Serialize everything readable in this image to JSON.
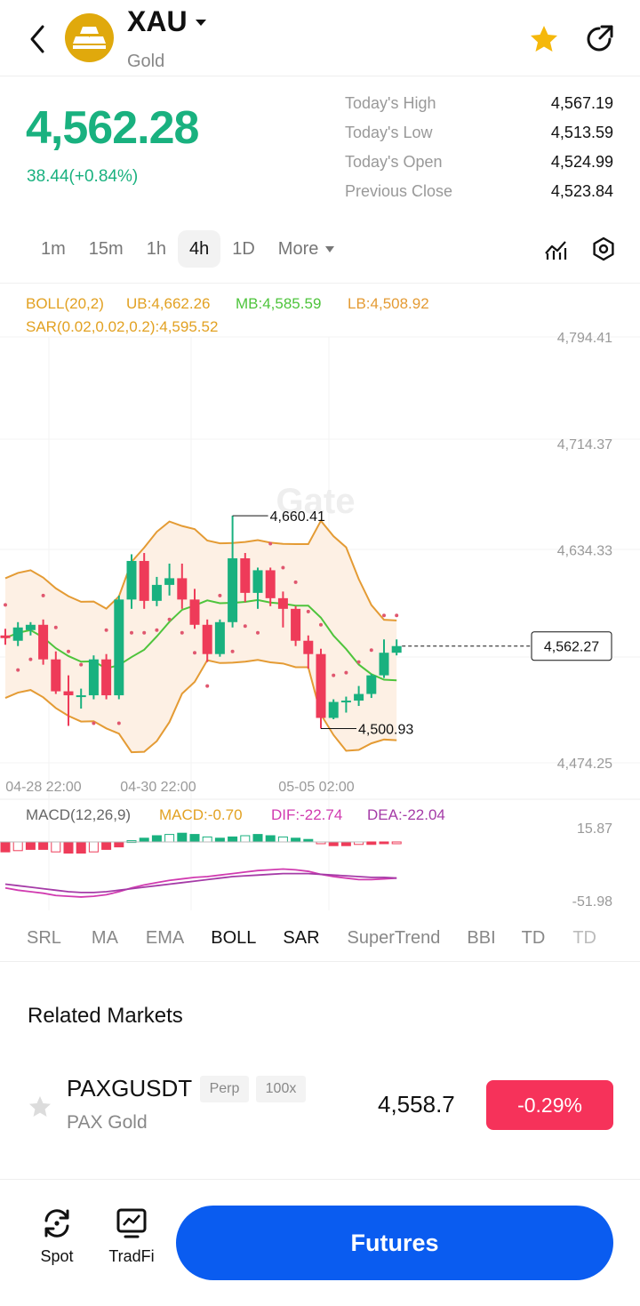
{
  "header": {
    "back_icon": "chevron-left-icon",
    "logo_icon": "gold-bars-icon",
    "symbol": "XAU",
    "name": "Gold",
    "favorite_icon": "star-icon",
    "favorite_color": "#f5b80b",
    "share_icon": "share-arrow-icon"
  },
  "quote": {
    "price": "4,562.28",
    "change": "38.44(+0.84%)",
    "color": "#19b17f",
    "stats": [
      {
        "label": "Today's High",
        "value": "4,567.19"
      },
      {
        "label": "Today's Low",
        "value": "4,513.59"
      },
      {
        "label": "Today's Open",
        "value": "4,524.99"
      },
      {
        "label": "Previous Close",
        "value": "4,523.84"
      }
    ]
  },
  "intervals": {
    "items": [
      "1m",
      "15m",
      "1h",
      "4h",
      "1D"
    ],
    "active": "4h",
    "more_label": "More",
    "chart_type_icon": "candle-chart-icon",
    "settings_icon": "hexagon-gear-icon"
  },
  "chart_data": {
    "type": "candlestick",
    "boll_label": "BOLL(20,2)",
    "ub_label": "UB:4,662.26",
    "mb_label": "MB:4,585.59",
    "lb_label": "LB:4,508.92",
    "sar_label": "SAR(0.02,0.02,0.2):4,595.52",
    "y_ticks": [
      "4,794.41",
      "4,714.37",
      "4,634.33",
      "4,474.25"
    ],
    "ylim": [
      4474.25,
      4794.41
    ],
    "x_ticks": [
      "04-28 22:00",
      "04-30 22:00",
      "05-05 02:00"
    ],
    "current_price_label": "4,562.27",
    "high_marker": "4,660.41",
    "low_marker": "4,500.93",
    "watermark": "Gate",
    "candles": [
      {
        "o": 4570,
        "h": 4575,
        "l": 4563,
        "c": 4568
      },
      {
        "o": 4566,
        "h": 4580,
        "l": 4562,
        "c": 4576
      },
      {
        "o": 4574,
        "h": 4580,
        "l": 4570,
        "c": 4578
      },
      {
        "o": 4578,
        "h": 4582,
        "l": 4548,
        "c": 4552
      },
      {
        "o": 4552,
        "h": 4558,
        "l": 4526,
        "c": 4528
      },
      {
        "o": 4528,
        "h": 4540,
        "l": 4502,
        "c": 4525
      },
      {
        "o": 4525,
        "h": 4530,
        "l": 4515,
        "c": 4525
      },
      {
        "o": 4525,
        "h": 4555,
        "l": 4522,
        "c": 4552
      },
      {
        "o": 4552,
        "h": 4556,
        "l": 4522,
        "c": 4525
      },
      {
        "o": 4525,
        "h": 4600,
        "l": 4522,
        "c": 4597
      },
      {
        "o": 4597,
        "h": 4631,
        "l": 4590,
        "c": 4626
      },
      {
        "o": 4626,
        "h": 4632,
        "l": 4590,
        "c": 4596
      },
      {
        "o": 4596,
        "h": 4614,
        "l": 4592,
        "c": 4608
      },
      {
        "o": 4608,
        "h": 4624,
        "l": 4600,
        "c": 4613
      },
      {
        "o": 4613,
        "h": 4624,
        "l": 4590,
        "c": 4597
      },
      {
        "o": 4597,
        "h": 4605,
        "l": 4575,
        "c": 4578
      },
      {
        "o": 4578,
        "h": 4582,
        "l": 4550,
        "c": 4556
      },
      {
        "o": 4556,
        "h": 4582,
        "l": 4554,
        "c": 4580
      },
      {
        "o": 4580,
        "h": 4660,
        "l": 4576,
        "c": 4628
      },
      {
        "o": 4628,
        "h": 4632,
        "l": 4595,
        "c": 4602
      },
      {
        "o": 4602,
        "h": 4621,
        "l": 4590,
        "c": 4619
      },
      {
        "o": 4619,
        "h": 4621,
        "l": 4592,
        "c": 4598
      },
      {
        "o": 4598,
        "h": 4603,
        "l": 4576,
        "c": 4590
      },
      {
        "o": 4590,
        "h": 4592,
        "l": 4562,
        "c": 4566
      },
      {
        "o": 4566,
        "h": 4570,
        "l": 4545,
        "c": 4556
      },
      {
        "o": 4556,
        "h": 4560,
        "l": 4500,
        "c": 4508
      },
      {
        "o": 4508,
        "h": 4522,
        "l": 4507,
        "c": 4520
      },
      {
        "o": 4520,
        "h": 4524,
        "l": 4512,
        "c": 4521
      },
      {
        "o": 4521,
        "h": 4532,
        "l": 4517,
        "c": 4526
      },
      {
        "o": 4526,
        "h": 4541,
        "l": 4523,
        "c": 4540
      },
      {
        "o": 4540,
        "h": 4567,
        "l": 4538,
        "c": 4557
      },
      {
        "o": 4557,
        "h": 4567,
        "l": 4555,
        "c": 4562
      }
    ],
    "macd": {
      "label": "MACD(12,26,9)",
      "macd_label": "MACD:-0.70",
      "dif_label": "DIF:-22.74",
      "dea_label": "DEA:-22.04",
      "y_ticks": [
        "15.87",
        "-51.98"
      ],
      "ylim": [
        -51.98,
        15.87
      ],
      "hist": [
        -8,
        -7,
        -6,
        -6,
        -8,
        -9,
        -9,
        -8,
        -6,
        -4,
        1,
        3,
        5,
        6,
        7,
        6,
        4,
        3,
        4,
        5,
        6,
        5,
        4,
        3,
        2,
        -1,
        -3,
        -3,
        -2,
        -2,
        -1,
        -1
      ],
      "dif": [
        -35,
        -38,
        -40,
        -42,
        -45,
        -46,
        -47,
        -46,
        -44,
        -40,
        -35,
        -31,
        -28,
        -25,
        -23,
        -21,
        -20,
        -18,
        -16,
        -14,
        -12,
        -11,
        -10,
        -11,
        -13,
        -17,
        -20,
        -22,
        -24,
        -24,
        -23,
        -22
      ],
      "dea": [
        -30,
        -32,
        -34,
        -36,
        -38,
        -40,
        -41,
        -41,
        -40,
        -38,
        -36,
        -34,
        -32,
        -30,
        -28,
        -26,
        -24,
        -22,
        -20,
        -19,
        -18,
        -17,
        -16,
        -16,
        -16,
        -17,
        -18,
        -19,
        -20,
        -21,
        -21,
        -22
      ]
    },
    "colors": {
      "up": "#19b17f",
      "down": "#ee3b59",
      "ub": "#e49b34",
      "mb": "#4ec43c",
      "lb": "#e49b34",
      "sar": "#e0576f",
      "band_fill": "#fdf0e4",
      "dif": "#d13bb0",
      "dea": "#a53ba7"
    }
  },
  "indicator_tabs": {
    "items": [
      "SRL",
      "MA",
      "EMA",
      "BOLL",
      "SAR",
      "SuperTrend",
      "BBI",
      "TD",
      "TD"
    ],
    "active": [
      "BOLL",
      "SAR"
    ]
  },
  "related": {
    "title": "Related Markets",
    "star_icon": "star-outline-icon",
    "symbol": "PAXGUSDT",
    "tag1": "Perp",
    "tag2": "100x",
    "name": "PAX Gold",
    "price": "4,558.7",
    "change": "-0.29%"
  },
  "bottom": {
    "spot_label": "Spot",
    "spot_icon": "spot-swap-icon",
    "tradfi_label": "TradFi",
    "tradfi_icon": "tradfi-chart-icon",
    "futures_label": "Futures"
  }
}
